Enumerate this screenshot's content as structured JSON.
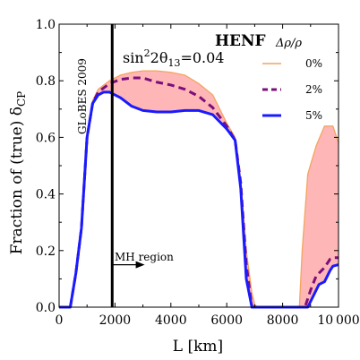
{
  "chart_data": {
    "type": "line",
    "title": "HENF",
    "xlabel": "L [km]",
    "ylabel": "Fraction of (true) δ",
    "ylabel_sub": "CP",
    "xlim": [
      0,
      10000
    ],
    "ylim": [
      0,
      1.0
    ],
    "x_ticks": [
      0,
      2000,
      4000,
      6000,
      8000,
      10000
    ],
    "x_tick_labels": [
      "0",
      "2000",
      "4000",
      "6000",
      "8000",
      "10 000"
    ],
    "y_ticks": [
      0.0,
      0.2,
      0.4,
      0.6,
      0.8,
      1.0
    ],
    "y_tick_labels": [
      "0.0",
      "0.2",
      "0.4",
      "0.6",
      "0.8",
      "1.0"
    ],
    "grid": false,
    "legend": {
      "position": "top-right",
      "title": "Δρ/ρ",
      "entries": [
        "0%",
        "2%",
        "5%"
      ]
    },
    "annotations": {
      "theta_prefix": "sin",
      "theta_sup": "2",
      "theta_mid": "2θ",
      "theta_sub": "13",
      "theta_value": "=0.04",
      "globes": "GLoBES 2009",
      "mh_region": "MH region",
      "vline_x": 1900,
      "arrow_x": [
        1900,
        3000
      ],
      "arrow_y": 0.15
    },
    "colors": {
      "s0": "#f4a460",
      "s0_fill": "#ffb6b6",
      "s2": "#7b0f7b",
      "s5": "#1a1aff",
      "vline": "#000000"
    },
    "series": [
      {
        "name": "0%",
        "x": [
          0,
          400,
          600,
          800,
          1000,
          1200,
          1400,
          1800,
          2200,
          2600,
          3000,
          3500,
          4000,
          4500,
          5000,
          5500,
          6000,
          6300,
          6500,
          6700,
          6900,
          7000,
          7100,
          8000,
          8600,
          8700,
          8900,
          9200,
          9500,
          9800,
          10000
        ],
        "y": [
          0,
          0,
          0.12,
          0.28,
          0.6,
          0.73,
          0.77,
          0.8,
          0.82,
          0.83,
          0.835,
          0.835,
          0.83,
          0.82,
          0.79,
          0.75,
          0.65,
          0.6,
          0.45,
          0.2,
          0.05,
          0.01,
          0,
          0,
          0,
          0.2,
          0.47,
          0.57,
          0.64,
          0.64,
          0.58
        ]
      },
      {
        "name": "2%",
        "x": [
          0,
          400,
          600,
          800,
          1000,
          1200,
          1400,
          1800,
          2200,
          2600,
          3000,
          3500,
          4000,
          4500,
          5000,
          5500,
          6000,
          6300,
          6500,
          6700,
          6900,
          7000,
          8000,
          8800,
          9000,
          9200,
          9500,
          9700,
          9800,
          10000
        ],
        "y": [
          0,
          0,
          0.12,
          0.28,
          0.6,
          0.72,
          0.76,
          0.79,
          0.805,
          0.81,
          0.81,
          0.795,
          0.785,
          0.77,
          0.745,
          0.705,
          0.64,
          0.59,
          0.44,
          0.15,
          0,
          0,
          0,
          0,
          0.06,
          0.11,
          0.14,
          0.17,
          0.175,
          0.175
        ]
      },
      {
        "name": "5%",
        "x": [
          0,
          400,
          600,
          800,
          1000,
          1200,
          1400,
          1600,
          1800,
          2200,
          2600,
          3000,
          3500,
          4000,
          4500,
          5000,
          5500,
          6000,
          6300,
          6500,
          6700,
          6900,
          7000,
          8000,
          8900,
          9100,
          9300,
          9500,
          9700,
          9800,
          10000
        ],
        "y": [
          0,
          0,
          0.12,
          0.28,
          0.6,
          0.72,
          0.75,
          0.76,
          0.76,
          0.74,
          0.71,
          0.695,
          0.69,
          0.69,
          0.695,
          0.695,
          0.68,
          0.63,
          0.59,
          0.42,
          0.1,
          0,
          0,
          0,
          0,
          0.04,
          0.08,
          0.09,
          0.13,
          0.145,
          0.15
        ]
      }
    ]
  }
}
